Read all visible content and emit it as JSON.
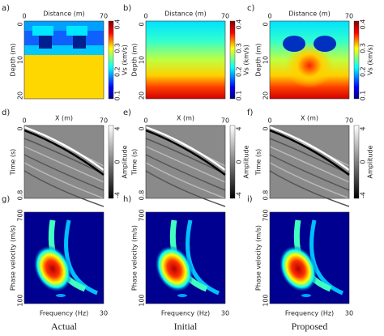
{
  "panels": [
    {
      "label": "a)",
      "x_label": "Distance (m)",
      "x_ticks": [
        "0",
        "70"
      ],
      "y_label": "Depth (m)",
      "y_ticks": [
        "0",
        "10",
        "20"
      ],
      "colorbar_label": "Vs (km/s)",
      "colorbar_ticks": [
        "0.4",
        "0.3",
        "0.2",
        "0.1"
      ]
    },
    {
      "label": "b)",
      "x_label": "Distance (m)",
      "x_ticks": [
        "0",
        "70"
      ],
      "y_label": "Depth (m)",
      "y_ticks": [
        "0",
        "10",
        "20"
      ],
      "colorbar_label": "Vs (km/s)",
      "colorbar_ticks": [
        "0.4",
        "0.3",
        "0.2",
        "0.1"
      ]
    },
    {
      "label": "c)",
      "x_label": "Distance (m)",
      "x_ticks": [
        "0",
        "70"
      ],
      "y_label": "Depth (m)",
      "y_ticks": [
        "0",
        "10",
        "20"
      ],
      "colorbar_label": "Vs (km/s)",
      "colorbar_ticks": [
        "0.4",
        "0.3",
        "0.2",
        "0.1"
      ]
    },
    {
      "label": "d)",
      "x_label": "X (m)",
      "x_ticks": [
        "0",
        "70"
      ],
      "y_label": "Time (s)",
      "y_ticks": [
        "0",
        "0.8"
      ],
      "colorbar_label": "Amplitude",
      "colorbar_ticks": [
        "4",
        "0",
        "-4"
      ]
    },
    {
      "label": "e)",
      "x_label": "X (m)",
      "x_ticks": [
        "0",
        "70"
      ],
      "y_label": "Time (s)",
      "y_ticks": [
        "0",
        "0.8"
      ],
      "colorbar_label": "Amplitude",
      "colorbar_ticks": [
        "4",
        "0",
        "-4"
      ]
    },
    {
      "label": "f)",
      "x_label": "X (m)",
      "x_ticks": [
        "0",
        "70"
      ],
      "y_label": "Time (s)",
      "y_ticks": [
        "0",
        "0.8"
      ],
      "colorbar_label": "Amplitude",
      "colorbar_ticks": [
        "4",
        "0",
        "-4"
      ]
    },
    {
      "label": "g)",
      "x_label": "Frequency (Hz)",
      "x_ticks": [
        "30"
      ],
      "y_label": "Phase velocity (m/s)",
      "y_ticks": [
        "700",
        "100"
      ]
    },
    {
      "label": "h)",
      "x_label": "Frequency (Hz)",
      "x_ticks": [
        "30"
      ],
      "y_label": "Phase velocity (m/s)",
      "y_ticks": [
        "700",
        "100"
      ]
    },
    {
      "label": "i)",
      "x_label": "Frequency (Hz)",
      "x_ticks": [
        "30"
      ],
      "y_label": "Phase velocity (m/s)",
      "y_ticks": [
        "700",
        "100"
      ]
    }
  ],
  "columns": [
    "Actual",
    "Initial",
    "Proposed"
  ]
}
